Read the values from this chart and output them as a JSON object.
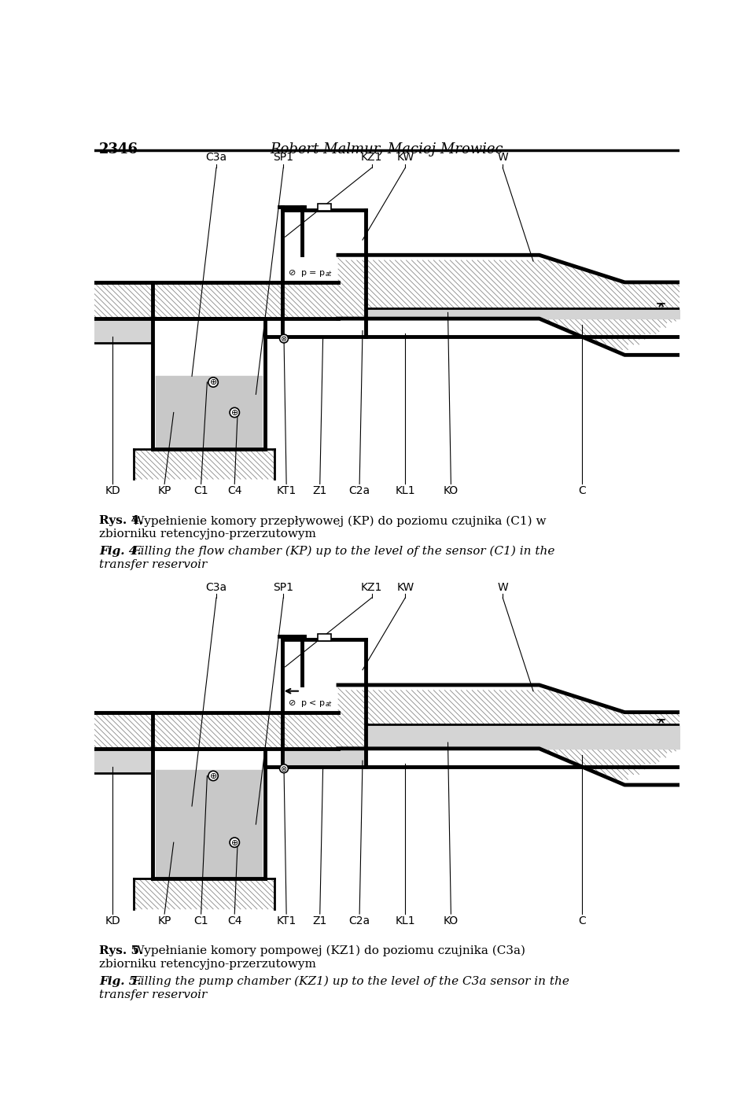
{
  "page_width": 9.6,
  "page_height": 14.19,
  "bg_color": "#ffffff",
  "header_text": "2346",
  "header_title": "Robert Malmur, Maciej Mrowiec",
  "thick_lw": 3.5,
  "med_lw": 2.0,
  "thin_lw": 0.8,
  "gray_fill": "#c8c8c8",
  "light_gray": "#d4d4d4",
  "hatch_color": "#888888",
  "top_labels_1": [
    "C3a",
    "SP1",
    "KZ1",
    "KW",
    "W"
  ],
  "top_lx_1": [
    200,
    310,
    455,
    510,
    670
  ],
  "bot_labels": [
    "KD",
    "KP",
    "C1",
    "C4",
    "KT1",
    "Z1",
    "C2a",
    "KL1",
    "KO",
    "C"
  ],
  "bot_lx": [
    30,
    115,
    175,
    230,
    315,
    370,
    435,
    510,
    585,
    800
  ],
  "caption1_rys": "Rys. 4.",
  "caption1_pl": "Wypełnienie komory przepływowej (KP) do poziomu czujnika (C1) w",
  "caption1_pl2": "zbiorniku retencyjno-przerzutowym",
  "caption1_fig": "Fig. 4.",
  "caption1_en": "Filling the flow chamber (KP) up to the level of the sensor (C1) in the",
  "caption1_en2": "transfer reservoir",
  "caption2_rys": "Rys. 5.",
  "caption2_pl": "Wypełnianie komory pompowej (KZ1) do poziomu czujnika (C3a)",
  "caption2_pl2": "zbiorniku retencyjno-przerzutowym",
  "caption2_fig": "Fig. 5.",
  "caption2_en": "Filling the pump chamber (KZ1) up to the level of the C3a sensor in the",
  "caption2_en2": "transfer reservoir"
}
